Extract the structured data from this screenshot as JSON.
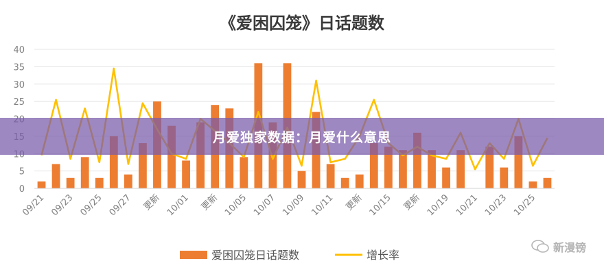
{
  "chart_data": {
    "type": "bar",
    "title": "《爱困囚笼》日话题数",
    "ylim": [
      0,
      40
    ],
    "yticks": [
      0,
      5,
      10,
      15,
      20,
      25,
      30,
      35,
      40
    ],
    "xtick_labels": [
      "09/21",
      "09/23",
      "09/25",
      "09/27",
      "更新",
      "10/01",
      "更新",
      "10/05",
      "10/07",
      "10/09",
      "10/11",
      "更新",
      "10/15",
      "更新",
      "10/19",
      "10/21",
      "10/23",
      "10/25"
    ],
    "series": [
      {
        "name": "爱困囚笼日话题数",
        "type": "bar",
        "color": "#ED7D31",
        "values": [
          2,
          7,
          3,
          9,
          3,
          15,
          4,
          13,
          25,
          18,
          8,
          19,
          24,
          23,
          9,
          36,
          19,
          36,
          5,
          22,
          7,
          3,
          4,
          13,
          12,
          11,
          16,
          11,
          6,
          11,
          0,
          12,
          6,
          15,
          2,
          3
        ]
      },
      {
        "name": "增长率",
        "type": "line",
        "color": "#FFC000",
        "values": [
          9.5,
          25.5,
          8.5,
          23,
          7.5,
          34.5,
          7,
          24.5,
          17,
          10,
          8.5,
          20,
          16.5,
          13,
          9,
          22,
          8.5,
          17.5,
          6.5,
          31,
          7.5,
          8.5,
          15,
          25.5,
          13,
          9.5,
          12,
          9.5,
          8.5,
          16,
          5.5,
          13,
          8.5,
          20,
          6.5,
          14.5
        ]
      }
    ]
  },
  "banner": {
    "text": "月爱独家数据：月爱什么意思"
  },
  "watermark": {
    "text": "新漫镑"
  }
}
